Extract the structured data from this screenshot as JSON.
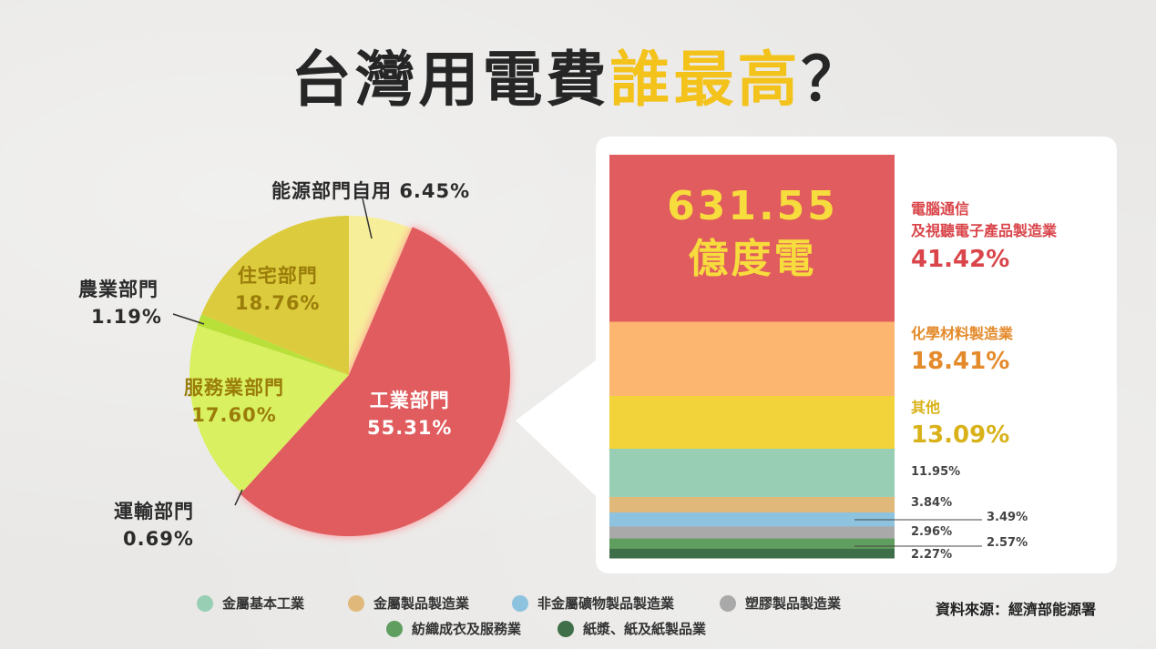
{
  "title": {
    "main": "台灣用電費",
    "highlight": "誰最高",
    "end": "？"
  },
  "chart_data": [
    {
      "type": "pie",
      "categories": [
        "工業部門",
        "能源部門自用",
        "住宅部門",
        "農業部門",
        "服務業部門",
        "運輸部門"
      ],
      "values": [
        55.31,
        6.45,
        18.76,
        1.19,
        17.6,
        0.69
      ],
      "labels": [
        "55.31%",
        "6.45%",
        "18.76%",
        "1.19%",
        "17.60%",
        "0.69%"
      ],
      "colors": [
        "#e05c5e",
        "#f7ee9a",
        "#dccb3c",
        "#b9e039",
        "#d9f060",
        "#d9f060"
      ]
    },
    {
      "type": "bar",
      "stacked": true,
      "total": "631.55",
      "total_unit": "億度電",
      "categories": [
        "電腦通信及視聽電子產品製造業",
        "化學材料製造業",
        "其他",
        "金屬基本工業",
        "金屬製品製造業",
        "非金屬礦物製品製造業",
        "塑膠製品製造業",
        "紡織成衣及服務業",
        "紙漿、紙及紙製品業"
      ],
      "values": [
        41.42,
        18.41,
        13.09,
        11.95,
        3.84,
        3.49,
        2.96,
        2.57,
        2.27
      ],
      "labels": [
        "41.42%",
        "18.41%",
        "13.09%",
        "11.95%",
        "3.84%",
        "3.49%",
        "2.96%",
        "2.57%",
        "2.27%"
      ],
      "colors": [
        "#e05c5e",
        "#fdb670",
        "#f3d33a",
        "#98cfb4",
        "#e0b97a",
        "#8dc3df",
        "#a9a9a9",
        "#5f9e5e",
        "#3f6f48"
      ]
    }
  ],
  "pie_labels": {
    "energy": {
      "name": "能源部門自用",
      "value": "6.45%"
    },
    "residential": {
      "name": "住宅部門",
      "value": "18.76%"
    },
    "agri": {
      "name": "農業部門",
      "value": "1.19%"
    },
    "service": {
      "name": "服務業部門",
      "value": "17.60%"
    },
    "industry": {
      "name": "工業部門",
      "value": "55.31%"
    },
    "transport": {
      "name": "運輸部門",
      "value": "0.69%"
    }
  },
  "bar_labels": {
    "total_value": "631.55",
    "total_unit": "億度電",
    "electronics_line1": "電腦通信",
    "electronics_line2": "及視聽電子產品製造業",
    "electronics_value": "41.42%",
    "chemical_name": "化學材料製造業",
    "chemical_value": "18.41%",
    "other_name": "其他",
    "other_value": "13.09%",
    "metal_value": "11.95%",
    "metalprod_value": "3.84%",
    "nonmetal_value": "3.49%",
    "plastic_value": "2.96%",
    "textile_value": "2.57%",
    "paper_value": "2.27%"
  },
  "legend": [
    {
      "label": "金屬基本工業",
      "color": "#98cfb4"
    },
    {
      "label": "金屬製品製造業",
      "color": "#e0b97a"
    },
    {
      "label": "非金屬礦物製品製造業",
      "color": "#8dc3df"
    },
    {
      "label": "塑膠製品製造業",
      "color": "#a9a9a9"
    },
    {
      "label": "紡織成衣及服務業",
      "color": "#5f9e5e"
    },
    {
      "label": "紙漿、紙及紙製品業",
      "color": "#3f6f48"
    }
  ],
  "source": "資料來源：經濟部能源署"
}
